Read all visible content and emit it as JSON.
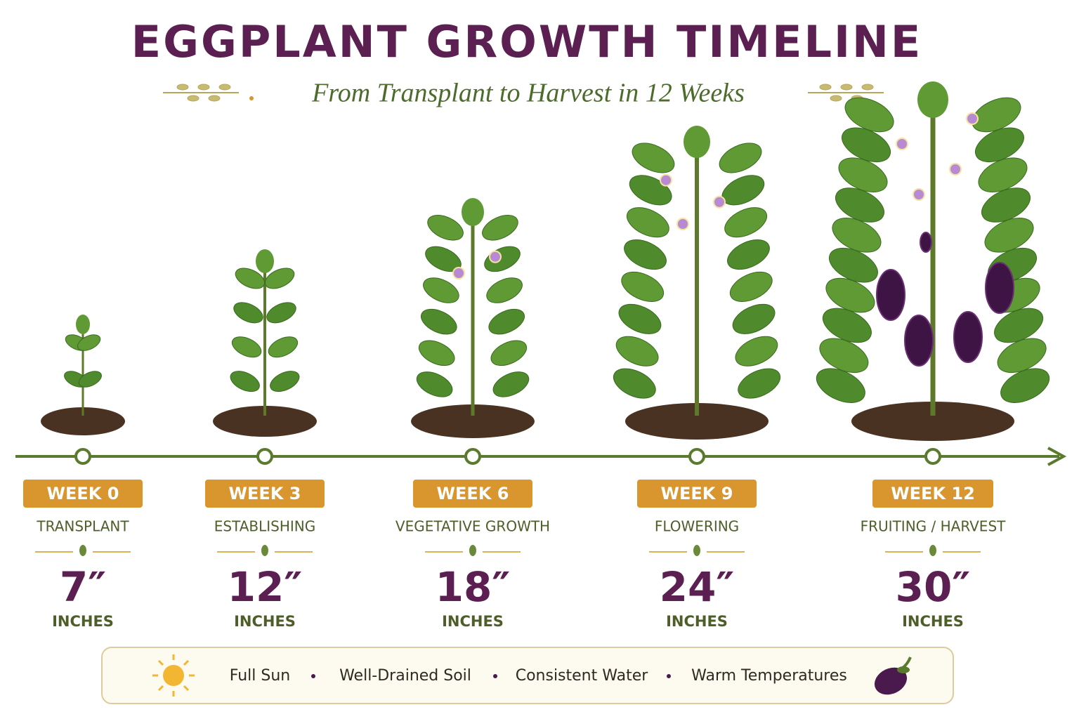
{
  "header": {
    "title": "EGGPLANT GROWTH TIMELINE",
    "subtitle": "From Transplant to Harvest in 12 Weeks"
  },
  "stages": [
    {
      "week": "WEEK 0",
      "name": "TRANSPLANT",
      "height": "7″",
      "unit": "INCHES"
    },
    {
      "week": "WEEK 3",
      "name": "ESTABLISHING",
      "height": "12″",
      "unit": "INCHES"
    },
    {
      "week": "WEEK 6",
      "name": "VEGETATIVE GROWTH",
      "height": "18″",
      "unit": "INCHES"
    },
    {
      "week": "WEEK 9",
      "name": "FLOWERING",
      "height": "24″",
      "unit": "INCHES"
    },
    {
      "week": "WEEK 12",
      "name": "FRUITING / HARVEST",
      "height": "30″",
      "unit": "INCHES"
    }
  ],
  "footer": [
    "Full Sun",
    "Well-Drained Soil",
    "Consistent Water",
    "Warm  Temperatures"
  ]
}
